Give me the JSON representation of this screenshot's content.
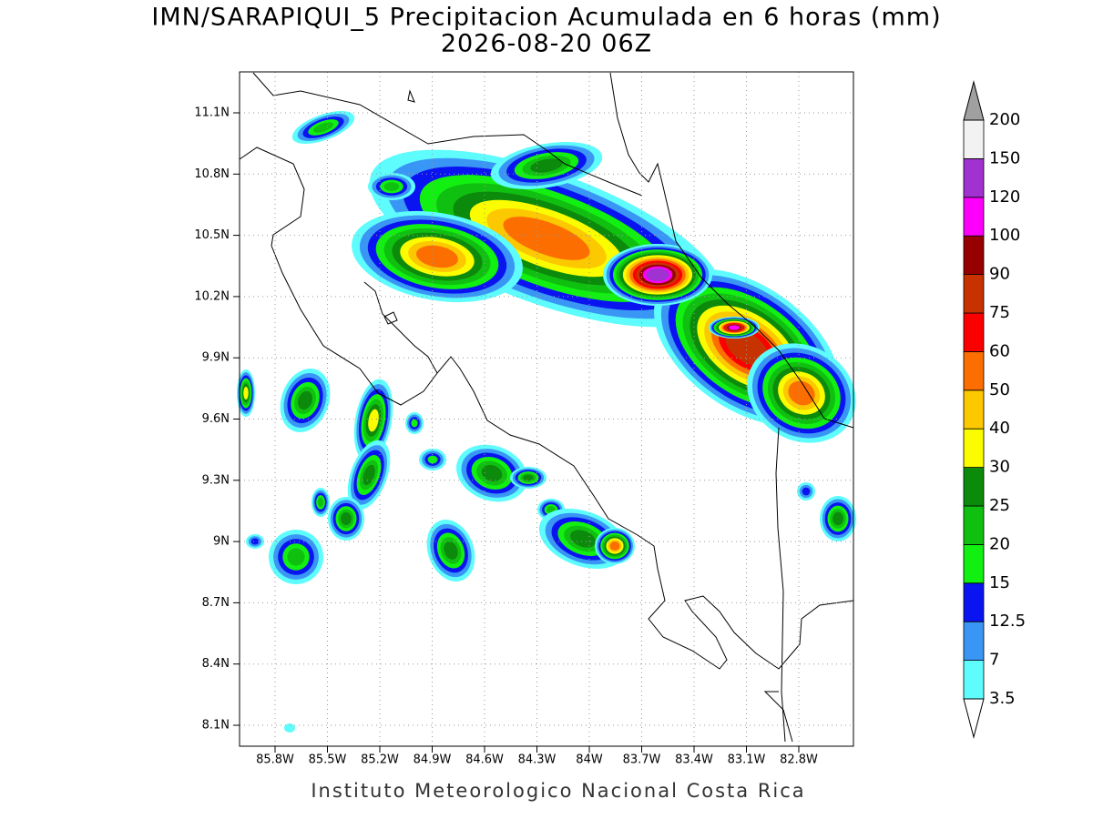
{
  "title": "IMN/SARAPIQUI_5 Precipitacion Acumulada en 6 horas (mm)",
  "subtitle": "2026-08-20 06Z",
  "lat_ticks": [
    "11.1N",
    "10.8N",
    "10.5N",
    "10.2N",
    "9.9N",
    "9.6N",
    "9.3N",
    "9N",
    "8.7N",
    "8.4N",
    "8.1N"
  ],
  "lon_ticks": [
    "85.8W",
    "85.5W",
    "85.2W",
    "84.9W",
    "84.6W",
    "84.3W",
    "84W",
    "83.7W",
    "83.4W",
    "83.1W",
    "82.8W"
  ],
  "colorbar": {
    "levels": [
      3.5,
      7,
      12.5,
      15,
      20,
      25,
      30,
      40,
      50,
      60,
      75,
      90,
      100,
      120,
      150,
      200
    ],
    "colors": [
      "#5efcfc",
      "#3a96f5",
      "#0a14f0",
      "#12f012",
      "#10c010",
      "#0c8a0c",
      "#fcfc00",
      "#fcc800",
      "#fc6e00",
      "#fc0000",
      "#c83200",
      "#960000",
      "#fc00fc",
      "#a032d2",
      "#f2f2f2"
    ],
    "over_color": "#a0a0a0",
    "under_color": "#ffffff"
  },
  "footer": "Instituto Meteorologico Nacional Costa Rica"
}
